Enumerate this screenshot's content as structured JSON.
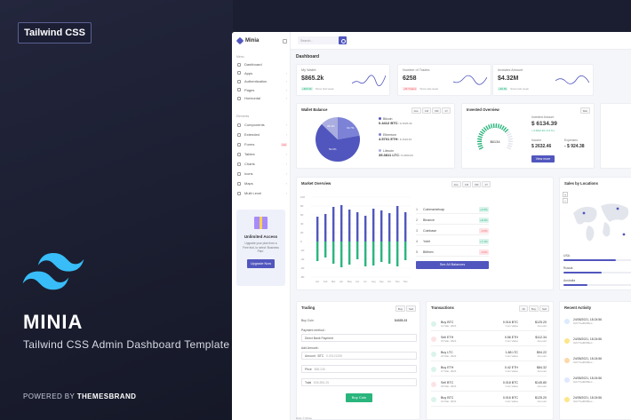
{
  "promo": {
    "badge": "Tailwind CSS",
    "brand": "MINIA",
    "subtitle": "Tailwind CSS Admin Dashboard Template",
    "powered_prefix": "POWERED BY ",
    "powered_brand": "THEMESBRAND"
  },
  "app": {
    "logo": "Minia",
    "search_placeholder": "Search...",
    "page_title": "Dashboard"
  },
  "sidebar": {
    "section_menu": "Menu",
    "section_elements": "Elements",
    "menu_items": [
      {
        "label": "Dashboard"
      },
      {
        "label": "Apps"
      },
      {
        "label": "Authentication"
      },
      {
        "label": "Pages"
      },
      {
        "label": "Horizontal"
      }
    ],
    "element_items": [
      {
        "label": "Components"
      },
      {
        "label": "Extended"
      },
      {
        "label": "Forms",
        "badge": "Hot"
      },
      {
        "label": "Tables"
      },
      {
        "label": "Charts"
      },
      {
        "label": "Icons"
      },
      {
        "label": "Maps"
      },
      {
        "label": "Multi Level"
      }
    ],
    "upgrade": {
      "title": "Unlimited Access",
      "text": "Upgrade your plan from a Free trial, to select 'Business Plan'.",
      "button": "Upgrade Now"
    }
  },
  "kpis": [
    {
      "label": "My Wallet",
      "value": "$865.2k",
      "change": "+$20.9k",
      "note": "Since last week",
      "trend": "up"
    },
    {
      "label": "Number of Trades",
      "value": "6258",
      "change": "-29 Trades",
      "note": "Since last week",
      "trend": "down"
    },
    {
      "label": "Invested Amount",
      "value": "$4.32M",
      "change": "+$2.8k",
      "note": "Since last week",
      "trend": "up"
    }
  ],
  "wallet": {
    "title": "Wallet Balance",
    "tabs": [
      "ALL",
      "1M",
      "6M",
      "1Y"
    ],
    "pie_labels": [
      "28.4%",
      "19.7%",
      "52.0%"
    ],
    "coins": [
      {
        "name": "Bitcoin",
        "amount": "0.4412 BTC",
        "usd": "= $ 4025.32",
        "color": "#5156be"
      },
      {
        "name": "Ethereum",
        "amount": "4.5701 ETH",
        "usd": "= $ 1123.64",
        "color": "#7c82d6"
      },
      {
        "name": "Litecoin",
        "amount": "35.3811 LTC",
        "usd": "= $ 2263.09",
        "color": "#a9addf"
      }
    ]
  },
  "invested": {
    "title": "Invested Overview",
    "select": "Mar",
    "gauge_label": "$6134",
    "gauge_fraction": 0.72,
    "amount_label": "Invested Amount",
    "amount": "$ 6134.39",
    "amount_change": "+ 0.0012.23 ( 0.2 % )",
    "income_label": "Income",
    "income": "$ 2632.46",
    "expenses_label": "Expenses",
    "expenses": "- $ 924.38",
    "button": "View more"
  },
  "market": {
    "title": "Market Overview",
    "tabs": [
      "ALL",
      "1M",
      "6M",
      "1Y"
    ],
    "y_ticks": [
      "100",
      "80",
      "60",
      "40",
      "20",
      "0",
      "-20",
      "-40",
      "-60",
      "-80"
    ],
    "months": [
      "Jan",
      "Feb",
      "Mar",
      "Apr",
      "May",
      "Jun",
      "Jul",
      "Aug",
      "Sep",
      "Oct",
      "Nov",
      "Dec"
    ],
    "ranking": [
      {
        "n": "1",
        "name": "Coinmarketcap",
        "pct": "+2.5%",
        "up": true
      },
      {
        "n": "2",
        "name": "Binance",
        "pct": "+8.3%",
        "up": true
      },
      {
        "n": "3",
        "name": "Coinbase",
        "pct": "-3.6%",
        "up": false
      },
      {
        "n": "4",
        "name": "Yobit",
        "pct": "+7.1%",
        "up": true
      },
      {
        "n": "5",
        "name": "Bitfinex",
        "pct": "-0.9%",
        "up": false
      }
    ],
    "see_all": "See All Balances"
  },
  "locations": {
    "title": "Sales by Locations",
    "bars": [
      {
        "name": "USA",
        "value": 0.75
      },
      {
        "name": "Russia",
        "value": 0.55
      },
      {
        "name": "Australia",
        "value": 0.35
      }
    ]
  },
  "trading": {
    "title": "Trading",
    "tabs": [
      "Buy",
      "Sell"
    ],
    "available_label": "Buy Coin",
    "available": "$4335.23",
    "payment_label": "Payment method :",
    "payment_value": "Direct Bank Payment",
    "add_amount_label": "Add Amount :",
    "amount_prefix": "Amount",
    "amount_coin": "BTC",
    "amount_value": "0.00121255",
    "price_label": "Price",
    "price_value": "$58.245",
    "total_label": "Total",
    "total_value": "$36.854.25",
    "button": "Buy Coin"
  },
  "transactions": {
    "title": "Transactions",
    "tabs": [
      "All",
      "Buy",
      "Sell"
    ],
    "rows": [
      {
        "type": "in",
        "label": "Buy BTC",
        "date": "14 Mar, 2021",
        "coin": "0.016 BTC",
        "sub": "Coin Value",
        "usd": "$125.20",
        "sub2": "Amount"
      },
      {
        "type": "out",
        "label": "Sell ETH",
        "date": "15 Mar, 2021",
        "coin": "0.56 ETH",
        "sub": "Coin Value",
        "usd": "$112.34",
        "sub2": "Amount"
      },
      {
        "type": "in",
        "label": "Buy LTC",
        "date": "16 Mar, 2021",
        "coin": "1.88 LTC",
        "sub": "Coin Value",
        "usd": "$94.22",
        "sub2": "Amount"
      },
      {
        "type": "in",
        "label": "Buy ETH",
        "date": "17 Mar, 2021",
        "coin": "0.42 ETH",
        "sub": "Coin Value",
        "usd": "$84.32",
        "sub2": "Amount"
      },
      {
        "type": "out",
        "label": "Sell BTC",
        "date": "18 Mar, 2021",
        "coin": "0.018 BTC",
        "sub": "Coin Value",
        "usd": "$145.80",
        "sub2": "Amount"
      },
      {
        "type": "in",
        "label": "Buy BTC",
        "date": "19 Mar, 2021",
        "coin": "0.016 BTC",
        "sub": "Coin Value",
        "usd": "$125.20",
        "sub2": "Amount"
      }
    ]
  },
  "activity": {
    "title": "Recent Activity",
    "items": [
      {
        "date": "24/05/2021, 18:24:56",
        "id": "0xb77ad0099ec..."
      },
      {
        "date": "24/05/2021, 18:24:56",
        "id": "0xb77ad0099ec..."
      },
      {
        "date": "24/05/2021, 18:24:56",
        "id": "0xb77ad0099ec..."
      },
      {
        "date": "24/05/2021, 18:24:56",
        "id": "0xb77ad0099ec..."
      },
      {
        "date": "24/05/2021, 18:24:56",
        "id": "0xb77ad0099ec..."
      }
    ]
  },
  "footer": "2021 © Minia",
  "colors": {
    "primary": "#5156be",
    "success": "#2ab57d",
    "danger": "#f46a6a",
    "promo_bg": "#1b1e30",
    "tailwind": "#38bdf8"
  }
}
